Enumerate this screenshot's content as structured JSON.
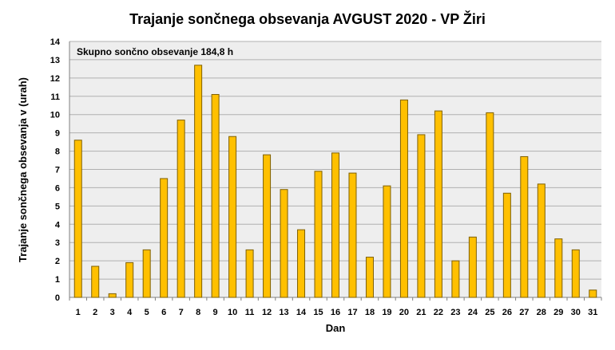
{
  "chart_data": {
    "type": "bar",
    "title": "Trajanje  sončnega obsevanja  AVGUST 2020 - VP Žiri",
    "xlabel": "Dan",
    "ylabel": "Trajanje  sončnega obsevanja  v (urah)",
    "annotation": "Skupno sončno obsevanje 184,8 h",
    "ylim": [
      0,
      14
    ],
    "yticks": [
      0,
      1,
      2,
      3,
      4,
      5,
      6,
      7,
      8,
      9,
      10,
      11,
      12,
      13,
      14
    ],
    "categories": [
      "1",
      "2",
      "3",
      "4",
      "5",
      "6",
      "7",
      "8",
      "9",
      "10",
      "11",
      "12",
      "13",
      "14",
      "15",
      "16",
      "17",
      "18",
      "19",
      "20",
      "21",
      "22",
      "23",
      "24",
      "25",
      "26",
      "27",
      "28",
      "29",
      "30",
      "31"
    ],
    "values": [
      8.6,
      1.7,
      0.2,
      1.9,
      2.6,
      6.5,
      9.7,
      12.7,
      11.1,
      8.8,
      2.6,
      7.8,
      5.9,
      3.7,
      6.9,
      7.9,
      6.8,
      2.2,
      6.1,
      10.8,
      8.9,
      10.2,
      2.0,
      3.3,
      10.1,
      5.7,
      7.7,
      6.2,
      3.2,
      2.6,
      0.4
    ],
    "grid": true,
    "colors": {
      "bar_fill": "#FFC000",
      "bar_stroke": "#7F6000",
      "plot_bg": "#EEEEEE",
      "gridline": "#B0B0B0"
    }
  }
}
